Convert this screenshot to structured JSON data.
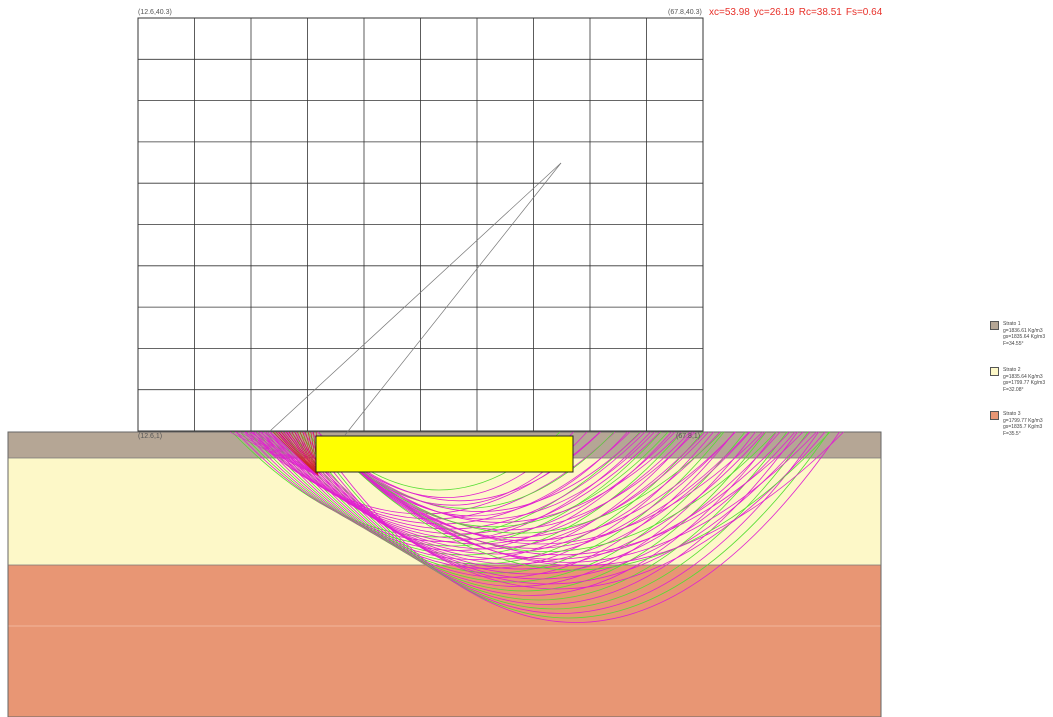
{
  "grid": {
    "top_left_label": "(12.6,40.3)",
    "top_right_label": "(67.8,40.3)",
    "bottom_left_label": "(12.6,1)",
    "bottom_right_label": "(67.8,1)",
    "columns": 10,
    "rows": 10
  },
  "result": {
    "xc": "xc=53.98",
    "yc": "yc=26.19",
    "rc": "Rc=38.51",
    "fs": "Fs=0.64"
  },
  "colors": {
    "layer1": "#b5a695",
    "layer2": "#fdf8c8",
    "layer3": "#e89674",
    "foundation": "#ffff00",
    "circles_primary": "#e020d0",
    "circles_secondary": "#55dd33",
    "critical_fan": "#cc2222",
    "grid_line": "#333333"
  },
  "legend": [
    {
      "name": "Strato 1",
      "line1": "g=1836.61 Kg/m3",
      "line2": "gs=1835.64 Kg/m3",
      "line3": "F=34.55°",
      "color": "#b5a695"
    },
    {
      "name": "Strato 2",
      "line1": "g=1835.64 Kg/m3",
      "line2": "gs=1799.77 Kg/m3",
      "line3": "F=32.08°",
      "color": "#fdf8c8"
    },
    {
      "name": "Strato 3",
      "line1": "g=1799.77 Kg/m3",
      "line2": "gs=1835.7 Kg/m3",
      "line3": "F=35.5°",
      "color": "#e89674"
    }
  ]
}
